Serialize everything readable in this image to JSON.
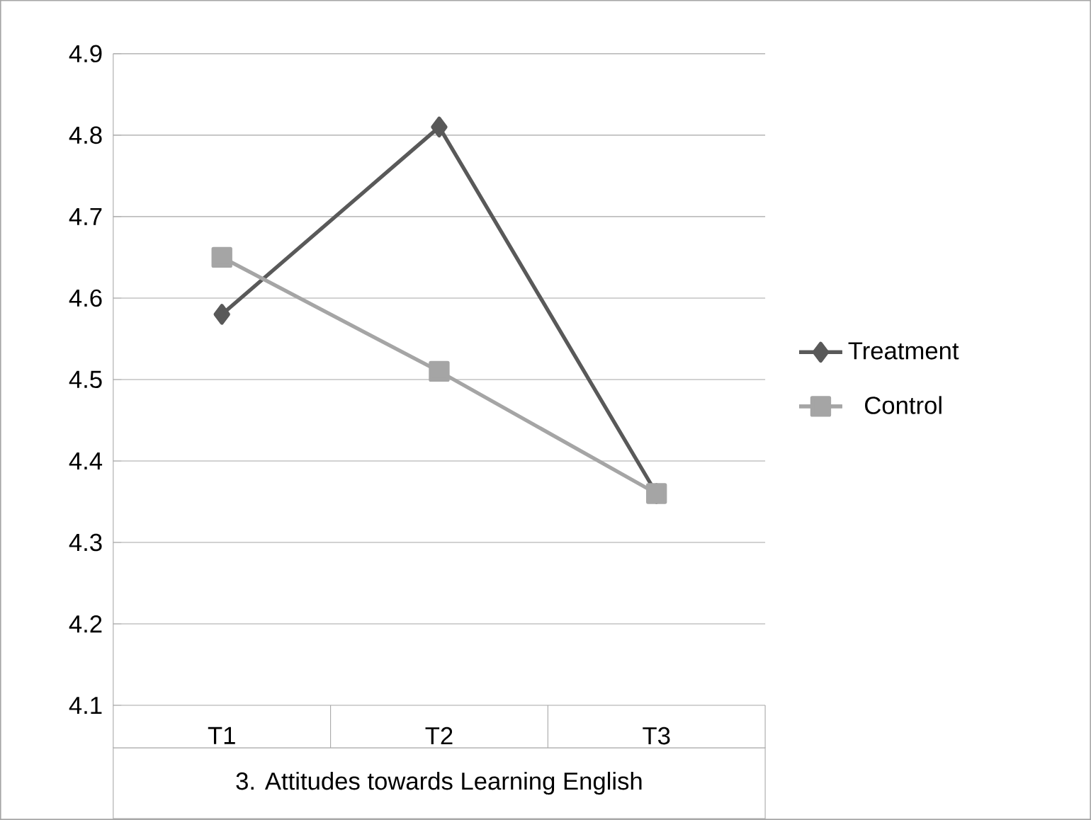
{
  "chart_data": {
    "type": "line",
    "xlabel": "3. Attitudes towards Learning English",
    "categories": [
      "T1",
      "T2",
      "T3"
    ],
    "series": [
      {
        "name": "Treatment",
        "color": "#595959",
        "marker": "diamond",
        "values": [
          4.58,
          4.81,
          4.36
        ]
      },
      {
        "name": "Control",
        "color": "#a5a5a5",
        "marker": "square",
        "values": [
          4.65,
          4.51,
          4.36
        ]
      }
    ],
    "ylim": [
      4.1,
      4.9
    ],
    "yticks": [
      4.1,
      4.2,
      4.3,
      4.4,
      4.5,
      4.6,
      4.7,
      4.8,
      4.9
    ],
    "grid": "y",
    "legend": "right",
    "line_style": "solid"
  }
}
